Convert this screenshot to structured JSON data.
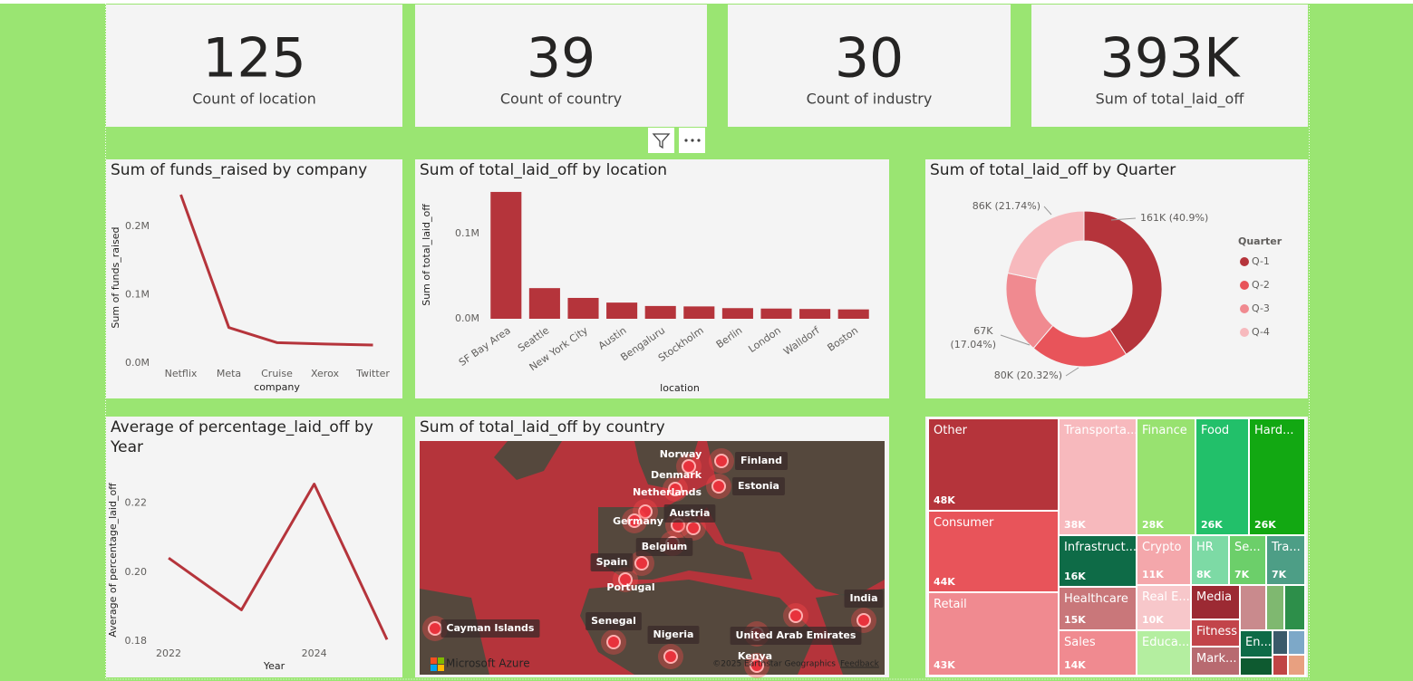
{
  "cards": [
    {
      "value": "125",
      "label": "Count of location"
    },
    {
      "value": "39",
      "label": "Count of country"
    },
    {
      "value": "30",
      "label": "Count of industry"
    },
    {
      "value": "393K",
      "label": "Sum of total_laid_off"
    }
  ],
  "chart_data": [
    {
      "type": "line",
      "title": "Sum of funds_raised by company",
      "categories": [
        "Netflix",
        "Meta",
        "Cruise",
        "Xerox",
        "Twitter"
      ],
      "values": [
        246000,
        52000,
        30000,
        28000,
        26500
      ],
      "color": "#b5343b",
      "ylim": [
        0,
        250000
      ],
      "yticks": [
        {
          "value": 0,
          "label": "0.0M"
        },
        {
          "value": 100000,
          "label": "0.1M"
        },
        {
          "value": 200000,
          "label": "0.2M"
        }
      ],
      "x_label": "company",
      "y_label": "Sum of funds_raised"
    },
    {
      "type": "bar",
      "title": "Sum of total_laid_off by location",
      "categories": [
        "SF Bay Area",
        "Seattle",
        "New York City",
        "Austin",
        "Bengaluru",
        "Stockholm",
        "Berlin",
        "London",
        "Walldorf",
        "Boston"
      ],
      "values": [
        149000,
        36000,
        24500,
        19000,
        15000,
        14500,
        12500,
        12000,
        11500,
        11000
      ],
      "color": "#b5343b",
      "ylim": [
        0,
        150000
      ],
      "yticks": [
        {
          "value": 0,
          "label": "0.0M"
        },
        {
          "value": 100000,
          "label": "0.1M"
        }
      ],
      "x_label": "location",
      "y_label": "Sum of total_laid_off"
    },
    {
      "type": "pie",
      "title": "Sum of total_laid_off by Quarter",
      "legend_title": "Quarter",
      "legend": "right",
      "donut": true,
      "categories": [
        "Q-1",
        "Q-2",
        "Q-3",
        "Q-4"
      ],
      "values": [
        40.9,
        20.32,
        17.04,
        21.74
      ],
      "value_labels": [
        "161K (40.9%)",
        "80K (20.32%)",
        "67K (17.04%)",
        "86K (21.74%)"
      ],
      "colors": [
        "#b5343b",
        "#e8545a",
        "#f08a90",
        "#f7b9bd"
      ]
    },
    {
      "type": "line",
      "title": "Average of percentage_laid_off by Year",
      "x": [
        2022,
        2023,
        2024,
        2025
      ],
      "values": [
        0.2041,
        0.1891,
        0.2255,
        0.1805
      ],
      "color": "#b5343b",
      "xlim": [
        2021.8,
        2025.1
      ],
      "xticks": [
        2022,
        2024
      ],
      "ylim": [
        0.179,
        0.228
      ],
      "yticks": [
        {
          "value": 0.18,
          "label": "0.18"
        },
        {
          "value": 0.2,
          "label": "0.20"
        },
        {
          "value": 0.22,
          "label": "0.22"
        }
      ],
      "x_label": "Year",
      "y_label": "Average of percentage_laid_off"
    },
    {
      "type": "map",
      "title": "Sum of total_laid_off by country",
      "labels": [
        "Norway",
        "Denmark",
        "Netherlands",
        "Finland",
        "Estonia",
        "Austria",
        "Germany",
        "Belgium",
        "Spain",
        "Portugal",
        "Cayman Islands",
        "Senegal",
        "Nigeria",
        "United Arab Emirates",
        "India",
        "Kenya"
      ],
      "provider": "Microsoft Azure",
      "attribution": "©2025 Earthstar Geographics",
      "link": "Feedback"
    },
    {
      "type": "treemap",
      "items": [
        {
          "name": "Other",
          "value": 48000,
          "value_label": "48K",
          "color": "#b5343b"
        },
        {
          "name": "Consumer",
          "value": 44000,
          "value_label": "44K",
          "color": "#e8545a"
        },
        {
          "name": "Retail",
          "value": 43000,
          "value_label": "43K",
          "color": "#f08a90"
        },
        {
          "name": "Transporta...",
          "value": 38000,
          "value_label": "38K",
          "color": "#f7b9bd"
        },
        {
          "name": "Infrastruct...",
          "value": 16000,
          "value_label": "16K",
          "color": "#0e6b47"
        },
        {
          "name": "Healthcare",
          "value": 15000,
          "value_label": "15K",
          "color": "#c9777a"
        },
        {
          "name": "Sales",
          "value": 14000,
          "value_label": "14K",
          "color": "#f08a90"
        },
        {
          "name": "Finance",
          "value": 28000,
          "value_label": "28K",
          "color": "#98e270"
        },
        {
          "name": "Crypto",
          "value": 11000,
          "value_label": "11K",
          "color": "#f4a7ab"
        },
        {
          "name": "Real E...",
          "value": 10000,
          "value_label": "10K",
          "color": "#f7c7ca"
        },
        {
          "name": "Educa...",
          "value": 10000,
          "color": "#b4eea0"
        },
        {
          "name": "Food",
          "value": 26000,
          "value_label": "26K",
          "color": "#22c06a"
        },
        {
          "name": "Hard...",
          "value": 26000,
          "value_label": "26K",
          "color": "#12a812"
        },
        {
          "name": "HR",
          "value": 8000,
          "value_label": "8K",
          "color": "#7ddaa5"
        },
        {
          "name": "Se...",
          "value": 7000,
          "value_label": "7K",
          "color": "#6ccf6a"
        },
        {
          "name": "Tra...",
          "value": 7000,
          "value_label": "7K",
          "color": "#4d9e86"
        },
        {
          "name": "Media",
          "value": 5500,
          "color": "#9c2a33"
        },
        {
          "name": "Fitness",
          "value": 4300,
          "color": "#c2444a"
        },
        {
          "name": "Mark...",
          "value": 4500,
          "color": "#b86a70"
        },
        {
          "name": "En...",
          "value": 2800,
          "color": "#0e6b47"
        }
      ]
    }
  ]
}
